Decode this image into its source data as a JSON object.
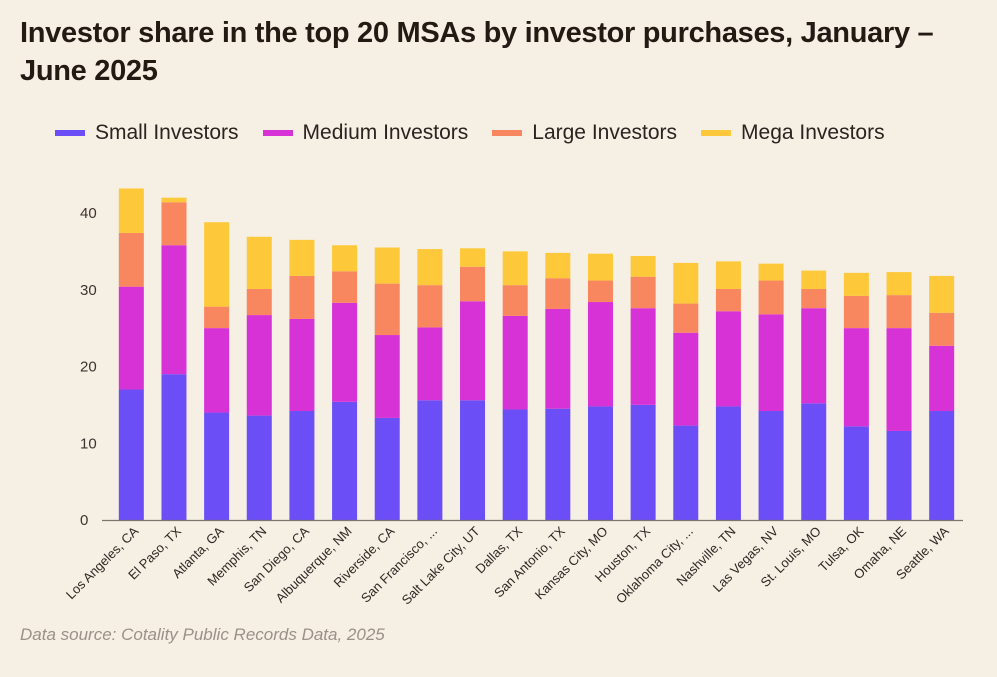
{
  "chart_data": {
    "type": "bar",
    "stacked": true,
    "title": "Investor share in the top 20 MSAs by investor purchases, January – June 2025",
    "source": "Data source: Cotality Public Records Data, 2025",
    "ylim": [
      0,
      45
    ],
    "yticks": [
      0,
      10,
      20,
      30,
      40
    ],
    "legend_position": "top",
    "categories": [
      "Los Angeles, CA",
      "El Paso, TX",
      "Atlanta, GA",
      "Memphis, TN",
      "San Diego, CA",
      "Albuquerque, NM",
      "Riverside, CA",
      "San Francisco, ...",
      "Salt Lake City, UT",
      "Dallas, TX",
      "San Antonio, TX",
      "Kansas City, MO",
      "Houston, TX",
      "Oklahoma City, ...",
      "Nashville, TN",
      "Las Vegas, NV",
      "St. Louis, MO",
      "Tulsa, OK",
      "Omaha, NE",
      "Seattle, WA"
    ],
    "series": [
      {
        "name": "Small Investors",
        "color": "#6b4ef5",
        "values": [
          17.0,
          19.0,
          14.0,
          13.6,
          14.2,
          15.4,
          13.3,
          15.6,
          15.6,
          14.4,
          14.5,
          14.8,
          15.0,
          12.3,
          14.8,
          14.2,
          15.2,
          12.2,
          11.6,
          14.2
        ]
      },
      {
        "name": "Medium Investors",
        "color": "#d632d6",
        "values": [
          13.4,
          16.8,
          11.0,
          13.1,
          12.0,
          12.9,
          10.8,
          9.5,
          12.9,
          12.2,
          13.0,
          13.6,
          12.6,
          12.1,
          12.4,
          12.6,
          12.4,
          12.8,
          13.4,
          8.5
        ]
      },
      {
        "name": "Large Investors",
        "color": "#f8865f",
        "values": [
          7.0,
          5.6,
          2.8,
          3.4,
          5.6,
          4.1,
          6.7,
          5.5,
          4.5,
          4.0,
          4.0,
          2.8,
          4.1,
          3.8,
          2.9,
          4.4,
          2.5,
          4.2,
          4.3,
          4.3
        ]
      },
      {
        "name": "Mega Investors",
        "color": "#fdc93a",
        "values": [
          5.8,
          0.6,
          11.0,
          6.8,
          4.7,
          3.4,
          4.7,
          4.7,
          2.4,
          4.4,
          3.3,
          3.5,
          2.7,
          5.3,
          3.6,
          2.2,
          2.4,
          3.0,
          3.0,
          4.8
        ]
      }
    ]
  }
}
